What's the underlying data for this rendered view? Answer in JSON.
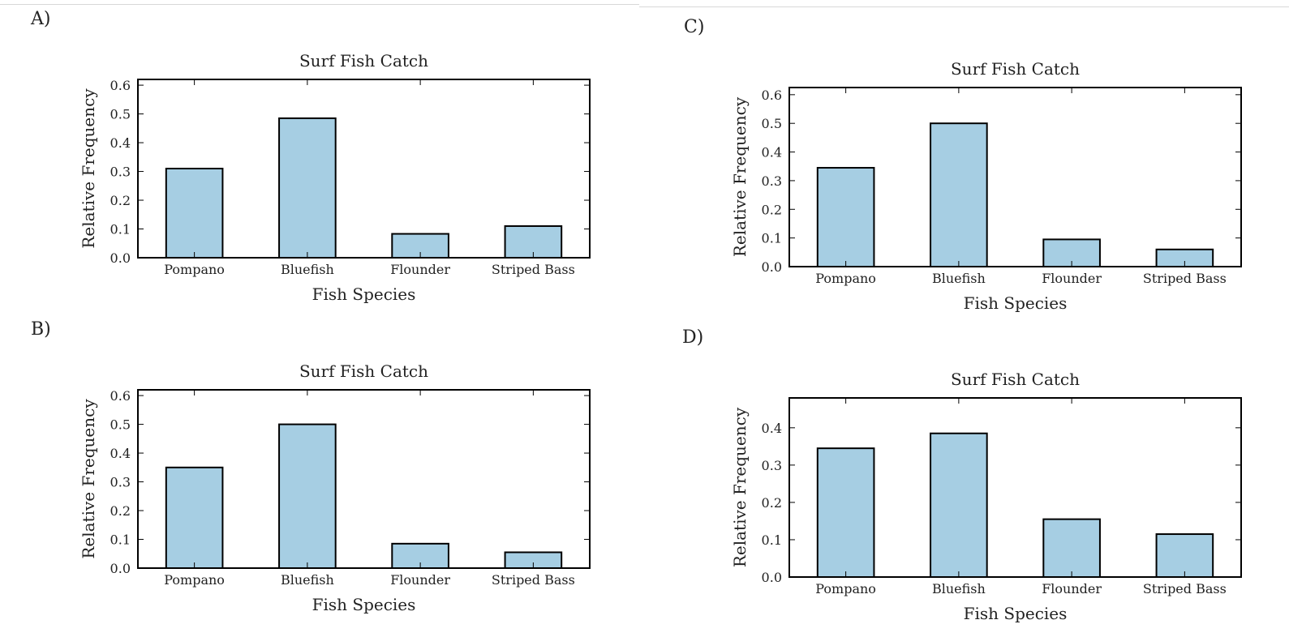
{
  "panels": [
    {
      "id": "A",
      "label": "A)"
    },
    {
      "id": "B",
      "label": "B)"
    },
    {
      "id": "C",
      "label": "C)"
    },
    {
      "id": "D",
      "label": "D)"
    }
  ],
  "chart_data": [
    {
      "panel": "A",
      "type": "bar",
      "title": "Surf Fish Catch",
      "xlabel": "Fish Species",
      "ylabel": "Relative Frequency",
      "categories": [
        "Pompano",
        "Bluefish",
        "Flounder",
        "Striped Bass"
      ],
      "values": [
        0.31,
        0.485,
        0.083,
        0.11
      ],
      "ylim": [
        0,
        0.62
      ],
      "yticks": [
        0.0,
        0.1,
        0.2,
        0.3,
        0.4,
        0.5,
        0.6
      ],
      "ytick_labels": [
        "0.0",
        "0.1",
        "0.2",
        "0.3",
        "0.4",
        "0.5",
        "0.6"
      ],
      "grid": false
    },
    {
      "panel": "B",
      "type": "bar",
      "title": "Surf Fish Catch",
      "xlabel": "Fish Species",
      "ylabel": "Relative Frequency",
      "categories": [
        "Pompano",
        "Bluefish",
        "Flounder",
        "Striped Bass"
      ],
      "values": [
        0.35,
        0.5,
        0.085,
        0.055
      ],
      "ylim": [
        0,
        0.62
      ],
      "yticks": [
        0.0,
        0.1,
        0.2,
        0.3,
        0.4,
        0.5,
        0.6
      ],
      "ytick_labels": [
        "0.0",
        "0.1",
        "0.2",
        "0.3",
        "0.4",
        "0.5",
        "0.6"
      ],
      "grid": false
    },
    {
      "panel": "C",
      "type": "bar",
      "title": "Surf Fish Catch",
      "xlabel": "Fish Species",
      "ylabel": "Relative Frequency",
      "categories": [
        "Pompano",
        "Bluefish",
        "Flounder",
        "Striped Bass"
      ],
      "values": [
        0.345,
        0.5,
        0.095,
        0.06
      ],
      "ylim": [
        0,
        0.625
      ],
      "yticks": [
        0.0,
        0.1,
        0.2,
        0.3,
        0.4,
        0.5,
        0.6
      ],
      "ytick_labels": [
        "0.0",
        "0.1",
        "0.2",
        "0.3",
        "0.4",
        "0.5",
        "0.6"
      ],
      "grid": false
    },
    {
      "panel": "D",
      "type": "bar",
      "title": "Surf Fish Catch",
      "xlabel": "Fish Species",
      "ylabel": "Relative Frequency",
      "categories": [
        "Pompano",
        "Bluefish",
        "Flounder",
        "Striped Bass"
      ],
      "values": [
        0.345,
        0.385,
        0.155,
        0.115
      ],
      "ylim": [
        0,
        0.48
      ],
      "yticks": [
        0.0,
        0.1,
        0.2,
        0.3,
        0.4
      ],
      "ytick_labels": [
        "0.0",
        "0.1",
        "0.2",
        "0.3",
        "0.4"
      ],
      "grid": false
    }
  ]
}
